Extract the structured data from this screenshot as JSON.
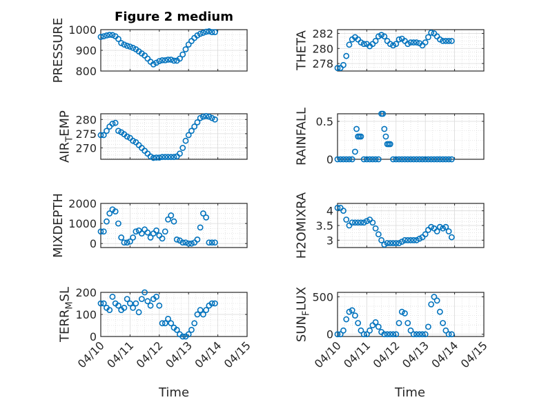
{
  "title": "Figure 2 medium",
  "marker_color": "#0072BD",
  "x_axis": {
    "tick_labels": [
      "04/10",
      "04/11",
      "04/12",
      "04/13",
      "04/14",
      "04/15"
    ],
    "xlim": [
      0,
      5
    ],
    "xlabel": "Time"
  },
  "chart_data": [
    {
      "type": "scatter",
      "id": "pressure",
      "ylabel": "PRESSURE",
      "ylim": [
        800,
        1000
      ],
      "yticks": [
        800,
        900,
        1000
      ],
      "ytick_labels": [
        "800",
        "900",
        "1000"
      ],
      "x": [
        0,
        0.1,
        0.2,
        0.3,
        0.4,
        0.5,
        0.6,
        0.7,
        0.8,
        0.9,
        1.0,
        1.1,
        1.2,
        1.3,
        1.4,
        1.5,
        1.6,
        1.7,
        1.8,
        1.9,
        2.0,
        2.1,
        2.2,
        2.3,
        2.4,
        2.5,
        2.6,
        2.7,
        2.8,
        2.9,
        3.0,
        3.1,
        3.2,
        3.3,
        3.4,
        3.5,
        3.6,
        3.7,
        3.8,
        3.9
      ],
      "y": [
        965,
        968,
        972,
        975,
        974,
        968,
        955,
        935,
        928,
        922,
        918,
        912,
        905,
        895,
        885,
        875,
        860,
        845,
        832,
        840,
        848,
        852,
        852,
        855,
        855,
        850,
        850,
        860,
        880,
        905,
        928,
        945,
        960,
        972,
        980,
        985,
        990,
        992,
        988,
        988
      ]
    },
    {
      "type": "scatter",
      "id": "theta",
      "ylabel": "THETA",
      "ylim": [
        277,
        282.5
      ],
      "yticks": [
        278,
        280,
        282
      ],
      "ytick_labels": [
        "278",
        "280",
        "282"
      ],
      "x": [
        0,
        0.1,
        0.2,
        0.3,
        0.4,
        0.5,
        0.6,
        0.7,
        0.8,
        0.9,
        1.0,
        1.1,
        1.2,
        1.3,
        1.4,
        1.5,
        1.6,
        1.7,
        1.8,
        1.9,
        2.0,
        2.1,
        2.2,
        2.3,
        2.4,
        2.5,
        2.6,
        2.7,
        2.8,
        2.9,
        3.0,
        3.1,
        3.2,
        3.3,
        3.4,
        3.5,
        3.6,
        3.7,
        3.8,
        3.9
      ],
      "y": [
        277.4,
        277.4,
        277.8,
        279.0,
        280.5,
        281.2,
        281.5,
        281.2,
        280.8,
        280.6,
        280.6,
        280.3,
        280.6,
        281.0,
        281.6,
        281.8,
        281.6,
        281.0,
        280.6,
        280.4,
        280.6,
        281.2,
        281.3,
        281.0,
        280.6,
        280.8,
        280.8,
        280.8,
        280.7,
        280.4,
        280.8,
        281.5,
        282.1,
        282.0,
        281.6,
        281.2,
        281.0,
        281.0,
        281.0,
        281.0
      ]
    },
    {
      "type": "scatter",
      "id": "air_temp",
      "ylabel": "AIR",
      "ylabel_sub": "T",
      "ylabel_rest": "EMP",
      "ylim": [
        266,
        282
      ],
      "yticks": [
        270,
        275,
        280
      ],
      "ytick_labels": [
        "270",
        "275",
        "280"
      ],
      "x": [
        0,
        0.1,
        0.2,
        0.3,
        0.4,
        0.5,
        0.6,
        0.7,
        0.8,
        0.9,
        1.0,
        1.1,
        1.2,
        1.3,
        1.4,
        1.5,
        1.6,
        1.7,
        1.8,
        1.9,
        2.0,
        2.1,
        2.2,
        2.3,
        2.4,
        2.5,
        2.6,
        2.7,
        2.8,
        2.9,
        3.0,
        3.1,
        3.2,
        3.3,
        3.4,
        3.5,
        3.6,
        3.7,
        3.8,
        3.9
      ],
      "y": [
        274.5,
        274.5,
        276.0,
        277.5,
        278.5,
        278.8,
        276.0,
        275.5,
        274.8,
        274.0,
        273.5,
        272.5,
        272.0,
        271.0,
        270.0,
        269.0,
        268.0,
        267.0,
        266.5,
        266.6,
        266.6,
        266.8,
        266.8,
        266.8,
        266.8,
        266.8,
        267.0,
        268.0,
        270.0,
        272.5,
        274.5,
        276.0,
        277.5,
        279.0,
        280.5,
        281.0,
        281.2,
        281.0,
        280.5,
        280.0
      ]
    },
    {
      "type": "scatter",
      "id": "rainfall",
      "ylabel": "RAINFALL",
      "ylim": [
        0,
        0.6
      ],
      "yticks": [
        0,
        0.5
      ],
      "ytick_labels": [
        "0",
        "0.5"
      ],
      "x": [
        0,
        0.1,
        0.2,
        0.3,
        0.4,
        0.5,
        0.6,
        0.65,
        0.7,
        0.75,
        0.8,
        0.9,
        1.0,
        1.1,
        1.2,
        1.3,
        1.4,
        1.5,
        1.55,
        1.6,
        1.65,
        1.7,
        1.75,
        1.8,
        1.9,
        2.0,
        2.1,
        2.2,
        2.3,
        2.4,
        2.5,
        2.6,
        2.7,
        2.8,
        2.9,
        3.0,
        3.1,
        3.2,
        3.3,
        3.4,
        3.5,
        3.6,
        3.7,
        3.8,
        3.9
      ],
      "y": [
        0,
        0,
        0,
        0,
        0,
        0,
        0.1,
        0.4,
        0.3,
        0.3,
        0.3,
        0,
        0,
        0,
        0,
        0,
        0,
        0.6,
        0.6,
        0.4,
        0.3,
        0.2,
        0.2,
        0.2,
        0,
        0,
        0,
        0,
        0,
        0,
        0,
        0,
        0,
        0,
        0,
        0,
        0,
        0,
        0,
        0,
        0,
        0,
        0,
        0,
        0
      ]
    },
    {
      "type": "scatter",
      "id": "mixdepth",
      "ylabel": "MIXDEPTH",
      "ylim": [
        -200,
        2000
      ],
      "yticks": [
        0,
        1000,
        2000
      ],
      "ytick_labels": [
        "0",
        "1000",
        "2000"
      ],
      "x": [
        0,
        0.1,
        0.2,
        0.3,
        0.4,
        0.5,
        0.6,
        0.7,
        0.8,
        0.9,
        1.0,
        1.1,
        1.2,
        1.3,
        1.4,
        1.5,
        1.6,
        1.7,
        1.8,
        1.9,
        2.0,
        2.1,
        2.2,
        2.3,
        2.4,
        2.5,
        2.6,
        2.7,
        2.8,
        2.9,
        3.0,
        3.1,
        3.2,
        3.3,
        3.4,
        3.5,
        3.6,
        3.7,
        3.8,
        3.9
      ],
      "y": [
        600,
        600,
        1100,
        1500,
        1700,
        1600,
        1000,
        300,
        50,
        50,
        100,
        300,
        600,
        650,
        500,
        700,
        550,
        300,
        500,
        650,
        400,
        250,
        600,
        1200,
        1400,
        1100,
        200,
        150,
        50,
        50,
        0,
        0,
        50,
        200,
        800,
        1500,
        1300,
        50,
        50,
        50
      ]
    },
    {
      "type": "scatter",
      "id": "h2omixra",
      "ylabel": "H2OMIXRA",
      "ylim": [
        2.75,
        4.25
      ],
      "yticks": [
        3,
        3.5,
        4
      ],
      "ytick_labels": [
        "3",
        "3.5",
        "4"
      ],
      "x": [
        0,
        0.1,
        0.2,
        0.3,
        0.4,
        0.5,
        0.6,
        0.7,
        0.8,
        0.9,
        1.0,
        1.1,
        1.2,
        1.3,
        1.4,
        1.5,
        1.6,
        1.7,
        1.8,
        1.9,
        2.0,
        2.1,
        2.2,
        2.3,
        2.4,
        2.5,
        2.6,
        2.7,
        2.8,
        2.9,
        3.0,
        3.1,
        3.2,
        3.3,
        3.4,
        3.5,
        3.6,
        3.7,
        3.8,
        3.9
      ],
      "y": [
        4.1,
        4.1,
        4.0,
        3.7,
        3.5,
        3.6,
        3.6,
        3.6,
        3.6,
        3.6,
        3.65,
        3.7,
        3.6,
        3.4,
        3.2,
        3.0,
        2.85,
        2.9,
        2.9,
        2.9,
        2.9,
        2.9,
        2.95,
        3.0,
        3.0,
        3.0,
        3.0,
        3.0,
        3.05,
        3.1,
        3.2,
        3.35,
        3.45,
        3.4,
        3.3,
        3.45,
        3.4,
        3.45,
        3.3,
        3.1
      ]
    },
    {
      "type": "scatter",
      "id": "terr_msl",
      "ylabel": "TERR",
      "ylabel_sub": "M",
      "ylabel_rest": "SL",
      "ylim": [
        0,
        200
      ],
      "yticks": [
        0,
        100,
        200
      ],
      "ytick_labels": [
        "0",
        "100",
        "200"
      ],
      "x": [
        0,
        0.1,
        0.2,
        0.3,
        0.4,
        0.5,
        0.6,
        0.7,
        0.8,
        0.9,
        1.0,
        1.1,
        1.2,
        1.3,
        1.4,
        1.5,
        1.6,
        1.7,
        1.8,
        1.9,
        2.0,
        2.1,
        2.2,
        2.3,
        2.4,
        2.5,
        2.6,
        2.7,
        2.8,
        2.9,
        3.0,
        3.1,
        3.2,
        3.3,
        3.4,
        3.5,
        3.6,
        3.7,
        3.8,
        3.9
      ],
      "y": [
        150,
        150,
        130,
        120,
        180,
        150,
        140,
        120,
        130,
        170,
        150,
        130,
        150,
        110,
        170,
        200,
        160,
        140,
        170,
        180,
        140,
        60,
        60,
        80,
        60,
        40,
        30,
        10,
        0,
        0,
        10,
        30,
        60,
        100,
        120,
        100,
        120,
        140,
        150,
        150
      ]
    },
    {
      "type": "scatter",
      "id": "sun_flux",
      "ylabel": "SUN",
      "ylabel_sub": "F",
      "ylabel_rest": "LUX",
      "ylim": [
        -30,
        560
      ],
      "yticks": [
        0,
        500
      ],
      "ytick_labels": [
        "0",
        "500"
      ],
      "x": [
        0,
        0.1,
        0.2,
        0.3,
        0.4,
        0.5,
        0.6,
        0.7,
        0.8,
        0.9,
        1.0,
        1.1,
        1.2,
        1.3,
        1.4,
        1.5,
        1.6,
        1.7,
        1.8,
        1.9,
        2.0,
        2.1,
        2.2,
        2.3,
        2.4,
        2.5,
        2.6,
        2.7,
        2.8,
        2.9,
        3.0,
        3.1,
        3.2,
        3.3,
        3.4,
        3.5,
        3.6,
        3.7,
        3.8,
        3.9
      ],
      "y": [
        0,
        0,
        50,
        200,
        300,
        320,
        250,
        150,
        50,
        0,
        0,
        50,
        120,
        160,
        100,
        30,
        0,
        0,
        0,
        0,
        0,
        150,
        300,
        280,
        150,
        50,
        0,
        0,
        0,
        0,
        0,
        100,
        400,
        500,
        450,
        300,
        150,
        50,
        0,
        0
      ]
    }
  ]
}
